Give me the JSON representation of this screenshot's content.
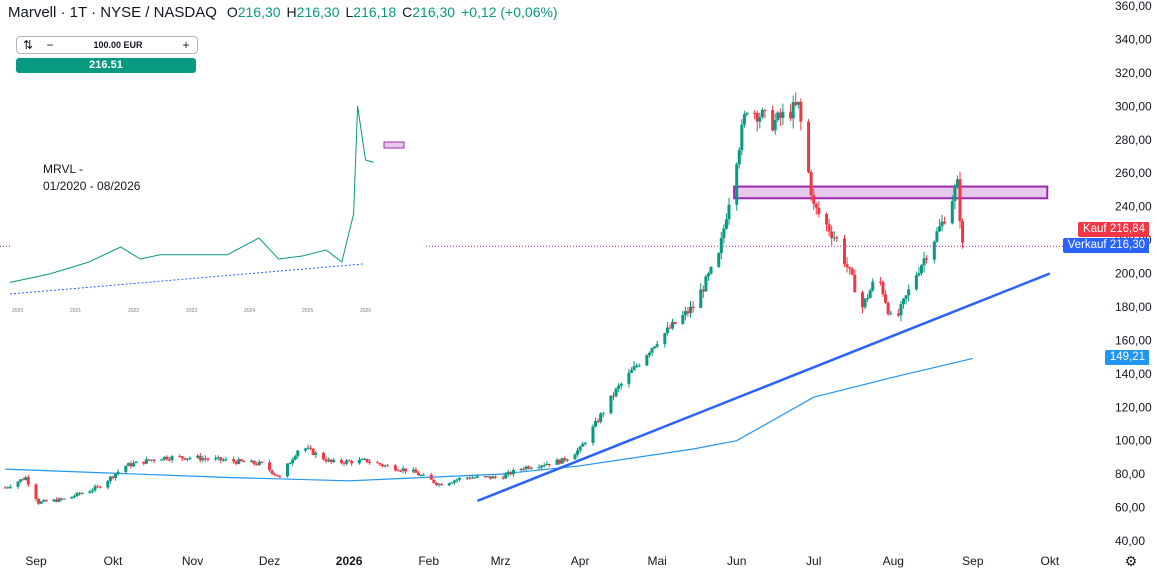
{
  "header": {
    "symbol": "Marvell · 1T · NYSE / NASDAQ",
    "o_label": "O",
    "o_value": "216,30",
    "h_label": "H",
    "h_value": "216,30",
    "l_label": "L",
    "l_value": "216,18",
    "c_label": "C",
    "c_value": "216,30",
    "change": "+0,12 (+0,06%)"
  },
  "trade_widget": {
    "swap_icon": "swap-icon",
    "minus_label": "−",
    "amount": "100.00 EUR",
    "plus_label": "+",
    "buy_price": "216.51"
  },
  "inset": {
    "title": "MRVL -",
    "range": "01/2020 - 08/2026"
  },
  "price_tags": {
    "kauf_label": "Kauf",
    "kauf_value": "216,84",
    "kauf_color": "#f23645",
    "verkauf_label": "Verkauf",
    "verkauf_value": "216,30",
    "verkauf_color": "#2962ff",
    "ma_value": "149,21",
    "ma_color": "#2196f3"
  },
  "chart_data": {
    "type": "candlestick",
    "y_ticks": [
      "360,00",
      "340,00",
      "320,00",
      "300,00",
      "280,00",
      "260,00",
      "240,00",
      "220,00",
      "200,00",
      "180,00",
      "160,00",
      "140,00",
      "120,00",
      "100,00",
      "80,00",
      "60,00",
      "40,00"
    ],
    "ylim": [
      40,
      360
    ],
    "x_ticks": [
      "Sep",
      "Okt",
      "Nov",
      "Dez",
      "2026",
      "Feb",
      "Mrz",
      "Apr",
      "Mai",
      "Jun",
      "Jul",
      "Aug",
      "Sep",
      "Okt"
    ],
    "x_tick_dates": [
      "2025-09-01",
      "2025-10-01",
      "2025-11-01",
      "2025-12-01",
      "2026-01-01",
      "2026-02-01",
      "2026-03-01",
      "2026-04-01",
      "2026-05-01",
      "2026-06-01",
      "2026-07-01",
      "2026-08-01",
      "2026-09-01",
      "2026-10-01"
    ],
    "up_color": "#089981",
    "down_color": "#f23645",
    "price_anchors": [
      {
        "date": "2025-08-20",
        "price": 72
      },
      {
        "date": "2025-08-28",
        "price": 78
      },
      {
        "date": "2025-09-02",
        "price": 63
      },
      {
        "date": "2025-09-12",
        "price": 65
      },
      {
        "date": "2025-09-25",
        "price": 72
      },
      {
        "date": "2025-10-06",
        "price": 85
      },
      {
        "date": "2025-10-20",
        "price": 90
      },
      {
        "date": "2025-11-01",
        "price": 90
      },
      {
        "date": "2025-11-15",
        "price": 88
      },
      {
        "date": "2025-11-28",
        "price": 86
      },
      {
        "date": "2025-12-05",
        "price": 78
      },
      {
        "date": "2025-12-13",
        "price": 97
      },
      {
        "date": "2025-12-25",
        "price": 87
      },
      {
        "date": "2026-01-08",
        "price": 88
      },
      {
        "date": "2026-01-15",
        "price": 85
      },
      {
        "date": "2026-01-25",
        "price": 82
      },
      {
        "date": "2026-02-05",
        "price": 74
      },
      {
        "date": "2026-02-15",
        "price": 78
      },
      {
        "date": "2026-03-01",
        "price": 78
      },
      {
        "date": "2026-03-10",
        "price": 84
      },
      {
        "date": "2026-03-25",
        "price": 88
      },
      {
        "date": "2026-04-01",
        "price": 95
      },
      {
        "date": "2026-04-15",
        "price": 130
      },
      {
        "date": "2026-05-01",
        "price": 160
      },
      {
        "date": "2026-05-15",
        "price": 180
      },
      {
        "date": "2026-05-25",
        "price": 210
      },
      {
        "date": "2026-06-01",
        "price": 270
      },
      {
        "date": "2026-06-05",
        "price": 300
      },
      {
        "date": "2026-06-15",
        "price": 290
      },
      {
        "date": "2026-06-25",
        "price": 300
      },
      {
        "date": "2026-07-01",
        "price": 240
      },
      {
        "date": "2026-07-10",
        "price": 220
      },
      {
        "date": "2026-07-20",
        "price": 180
      },
      {
        "date": "2026-07-26",
        "price": 200
      },
      {
        "date": "2026-08-01",
        "price": 168
      },
      {
        "date": "2026-08-10",
        "price": 200
      },
      {
        "date": "2026-08-20",
        "price": 230
      },
      {
        "date": "2026-08-26",
        "price": 253
      },
      {
        "date": "2026-08-28",
        "price": 216
      }
    ],
    "moving_average": [
      {
        "date": "2025-08-20",
        "value": 83
      },
      {
        "date": "2025-11-15",
        "value": 78
      },
      {
        "date": "2026-01-01",
        "value": 76
      },
      {
        "date": "2026-03-01",
        "value": 80
      },
      {
        "date": "2026-04-01",
        "value": 85
      },
      {
        "date": "2026-05-15",
        "value": 95
      },
      {
        "date": "2026-06-01",
        "value": 100
      },
      {
        "date": "2026-07-01",
        "value": 126
      },
      {
        "date": "2026-08-01",
        "value": 138
      },
      {
        "date": "2026-09-01",
        "value": 149.21
      }
    ],
    "trendline": [
      {
        "date": "2026-02-20",
        "value": 64
      },
      {
        "date": "2026-10-01",
        "value": 200
      }
    ],
    "resistance_box": {
      "date_from": "2026-05-31",
      "date_to": "2026-09-30",
      "low": 245,
      "high": 252
    },
    "last_price": 216.3
  },
  "inset_chart": {
    "x_ticks": [
      "2020",
      "2021",
      "2022",
      "2023",
      "2024",
      "2025",
      "2026"
    ],
    "points": [
      [
        0,
        16
      ],
      [
        0.1,
        30
      ],
      [
        0.2,
        50
      ],
      [
        0.28,
        75
      ],
      [
        0.33,
        55
      ],
      [
        0.38,
        62
      ],
      [
        0.48,
        62
      ],
      [
        0.55,
        62
      ],
      [
        0.63,
        90
      ],
      [
        0.68,
        55
      ],
      [
        0.74,
        60
      ],
      [
        0.8,
        70
      ],
      [
        0.84,
        50
      ],
      [
        0.87,
        130
      ],
      [
        0.88,
        310
      ],
      [
        0.9,
        220
      ],
      [
        0.92,
        216
      ]
    ]
  }
}
